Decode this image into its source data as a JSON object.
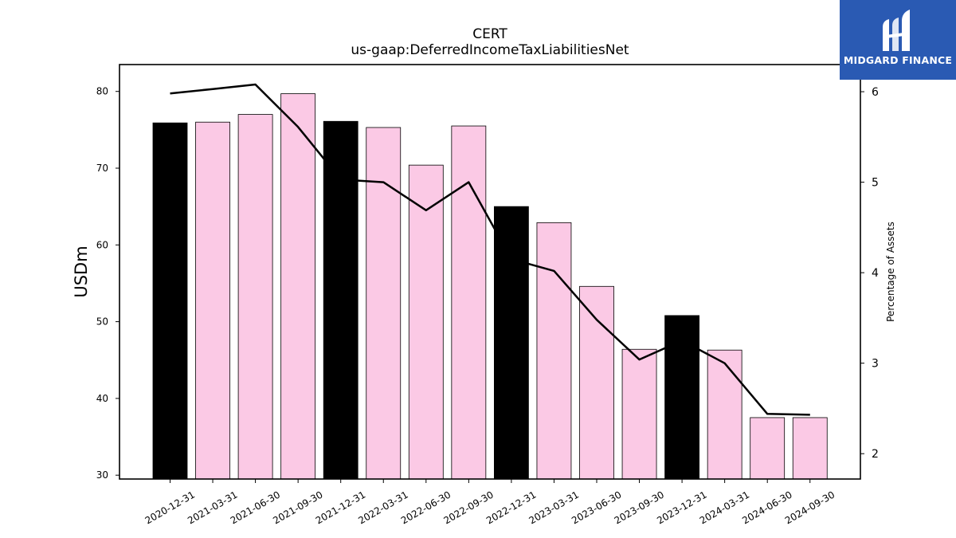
{
  "chart_data": {
    "type": "bar",
    "title": "CERT",
    "subtitle": "us-gaap:DeferredIncomeTaxLiabilitiesNet",
    "ylabel": "USDm",
    "y2label": "Percentage of Assets",
    "ylim": [
      29.5,
      83.5
    ],
    "y2lim": [
      1.72,
      6.3
    ],
    "yticks": [
      30,
      40,
      50,
      60,
      70,
      80
    ],
    "y2ticks": [
      2,
      3,
      4,
      5,
      6
    ],
    "categories": [
      "2020-12-31",
      "2021-03-31",
      "2021-06-30",
      "2021-09-30",
      "2021-12-31",
      "2022-03-31",
      "2022-06-30",
      "2022-09-30",
      "2022-12-31",
      "2023-03-31",
      "2023-06-30",
      "2023-09-30",
      "2023-12-31",
      "2024-03-31",
      "2024-06-30",
      "2024-09-30"
    ],
    "series": [
      {
        "values": [
          75.9,
          76.0,
          77.0,
          79.7,
          76.1,
          75.3,
          70.4,
          75.5,
          65.0,
          62.9,
          54.6,
          46.4,
          50.8,
          46.3,
          37.5,
          37.5
        ],
        "year_end_highlight": [
          true,
          false,
          false,
          false,
          true,
          false,
          false,
          false,
          true,
          false,
          false,
          false,
          true,
          false,
          false,
          false
        ]
      },
      {
        "axis": "right",
        "values": [
          5.98,
          6.03,
          6.08,
          5.61,
          5.03,
          5.0,
          4.69,
          5.0,
          4.15,
          4.02,
          3.48,
          3.04,
          3.25,
          3.0,
          2.44,
          2.43
        ]
      }
    ],
    "colors": {
      "bar_highlight": "#000000",
      "bar_regular": "#fbc9e5",
      "bar_edge": "#000000",
      "line": "#000000"
    }
  },
  "logo": {
    "text": "MIDGARD FINANCE",
    "background": "#2a5ab3"
  }
}
